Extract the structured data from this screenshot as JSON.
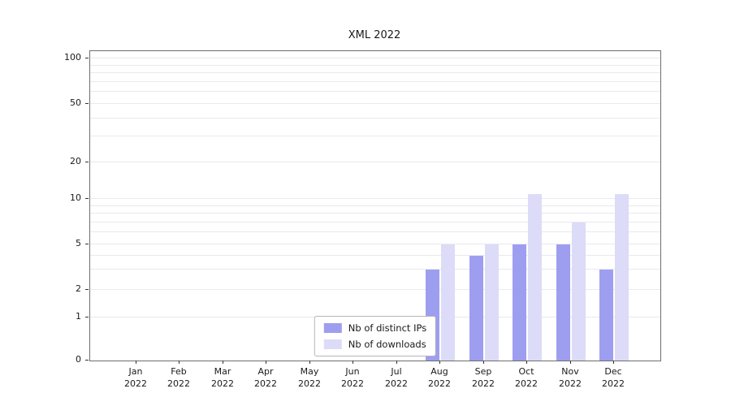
{
  "title": "XML 2022",
  "colors": {
    "distinct_ips": "#9e9ef0",
    "downloads": "#dcdcf8",
    "grid": "#e9e9ef",
    "spine": "#6e6e6e",
    "text": "#1a1a1a",
    "legend_border": "#b5b5b5"
  },
  "legend": {
    "items": [
      {
        "label": "Nb of distinct IPs",
        "series": "distinct_ips"
      },
      {
        "label": "Nb of downloads",
        "series": "downloads"
      }
    ]
  },
  "y_axis": {
    "ticks": [
      {
        "label": "0",
        "value": 0
      },
      {
        "label": "1",
        "value": 1
      },
      {
        "label": "2",
        "value": 2
      },
      {
        "label": "5",
        "value": 5
      },
      {
        "label": "10",
        "value": 10
      },
      {
        "label": "20",
        "value": 20
      },
      {
        "label": "50",
        "value": 50
      },
      {
        "label": "100",
        "value": 100
      }
    ],
    "grid_values": [
      1,
      2,
      3,
      4,
      5,
      6,
      7,
      8,
      9,
      10,
      20,
      30,
      40,
      50,
      60,
      70,
      80,
      90,
      100
    ]
  },
  "x_axis": {
    "categories": [
      {
        "month": "Jan",
        "year": "2022"
      },
      {
        "month": "Feb",
        "year": "2022"
      },
      {
        "month": "Mar",
        "year": "2022"
      },
      {
        "month": "Apr",
        "year": "2022"
      },
      {
        "month": "May",
        "year": "2022"
      },
      {
        "month": "Jun",
        "year": "2022"
      },
      {
        "month": "Jul",
        "year": "2022"
      },
      {
        "month": "Aug",
        "year": "2022"
      },
      {
        "month": "Sep",
        "year": "2022"
      },
      {
        "month": "Oct",
        "year": "2022"
      },
      {
        "month": "Nov",
        "year": "2022"
      },
      {
        "month": "Dec",
        "year": "2022"
      }
    ]
  },
  "chart_data": {
    "type": "bar",
    "title": "XML 2022",
    "xlabel": "",
    "ylabel": "",
    "categories": [
      "Jan 2022",
      "Feb 2022",
      "Mar 2022",
      "Apr 2022",
      "May 2022",
      "Jun 2022",
      "Jul 2022",
      "Aug 2022",
      "Sep 2022",
      "Oct 2022",
      "Nov 2022",
      "Dec 2022"
    ],
    "series": [
      {
        "name": "Nb of distinct IPs",
        "color": "#9e9ef0",
        "values": [
          0,
          0,
          0,
          0,
          0,
          0,
          0,
          3,
          4,
          5,
          5,
          3
        ]
      },
      {
        "name": "Nb of downloads",
        "color": "#dcdcf8",
        "values": [
          0,
          0,
          0,
          0,
          0,
          0,
          0,
          5,
          5,
          11,
          7,
          11
        ]
      }
    ],
    "yscale": "symlog",
    "yticks": [
      0,
      1,
      2,
      5,
      10,
      20,
      50,
      100
    ],
    "ylim": [
      0,
      110
    ],
    "grid": true,
    "legend_position": "lower center"
  }
}
